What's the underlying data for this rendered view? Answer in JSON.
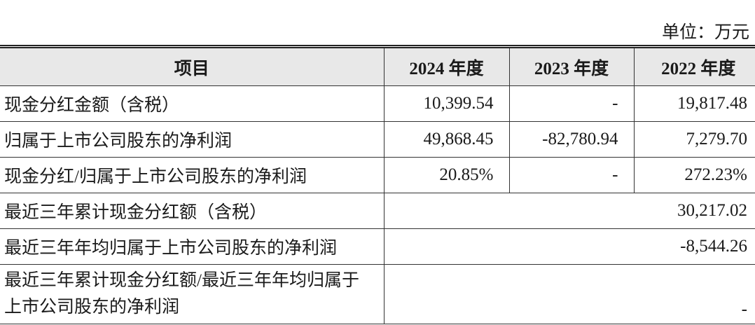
{
  "unit_label": "单位：万元",
  "headers": [
    "项目",
    "2024 年度",
    "2023 年度",
    "2022 年度"
  ],
  "rows": [
    {
      "label": "现金分红金额（含税）",
      "values": [
        "10,399.54",
        "-",
        "19,817.48"
      ]
    },
    {
      "label": "归属于上市公司股东的净利润",
      "values": [
        "49,868.45",
        "-82,780.94",
        "7,279.70"
      ]
    },
    {
      "label": "现金分红/归属于上市公司股东的净利润",
      "values": [
        "20.85%",
        "-",
        "272.23%"
      ]
    }
  ],
  "summary_rows": [
    {
      "label": "最近三年累计现金分红额（含税）",
      "value": "30,217.02"
    },
    {
      "label": "最近三年年均归属于上市公司股东的净利润",
      "value": "-8,544.26"
    },
    {
      "label": "最近三年累计现金分红额/最近三年年均归属于上市公司股东的净利润",
      "value": "-"
    }
  ]
}
